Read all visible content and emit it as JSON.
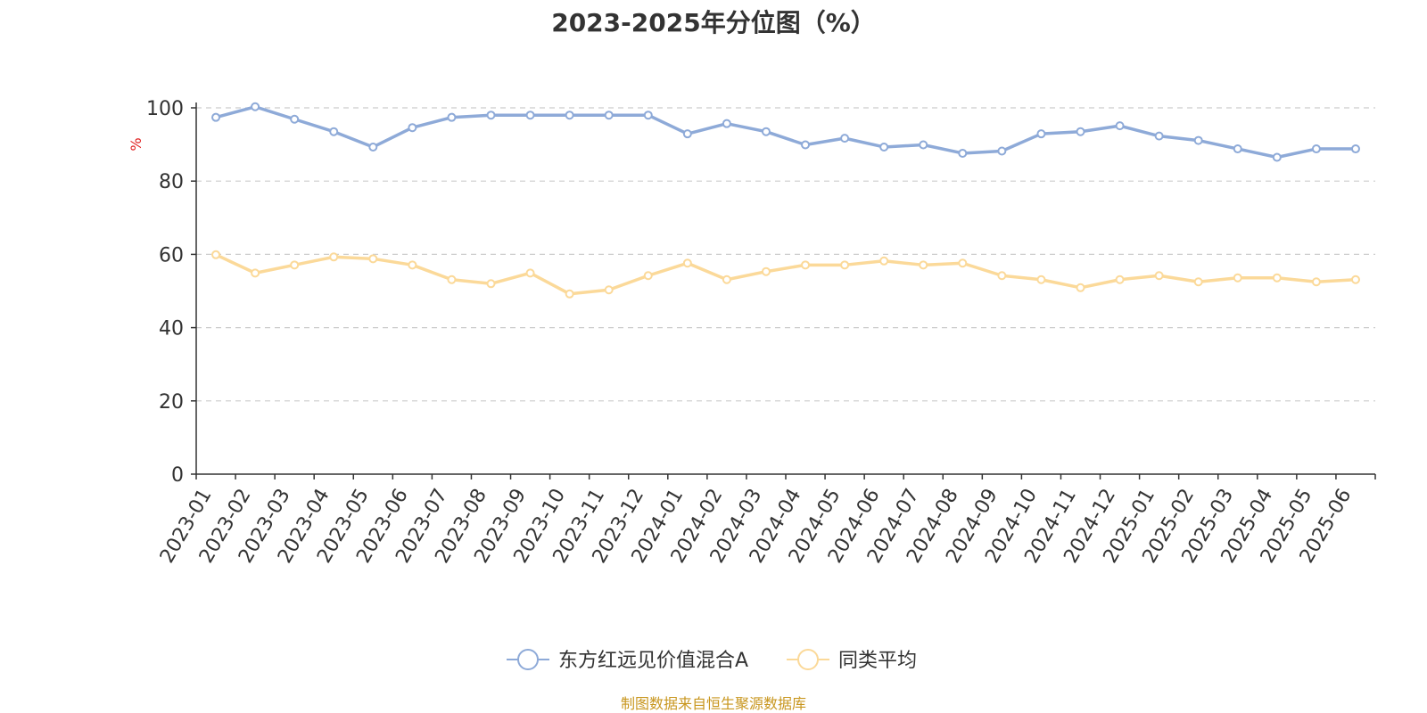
{
  "chart_data": {
    "type": "line",
    "title": "2023-2025年分位图（%）",
    "ylabel": "%",
    "ylim": [
      0,
      100
    ],
    "yticks": [
      0,
      20,
      40,
      60,
      80,
      100
    ],
    "grid": true,
    "legend_position": "bottom-center",
    "categories": [
      "2023-01",
      "2023-02",
      "2023-03",
      "2023-04",
      "2023-05",
      "2023-06",
      "2023-07",
      "2023-08",
      "2023-09",
      "2023-10",
      "2023-11",
      "2023-12",
      "2024-01",
      "2024-02",
      "2024-03",
      "2024-04",
      "2024-05",
      "2024-06",
      "2024-07",
      "2024-08",
      "2024-09",
      "2024-10",
      "2024-11",
      "2024-12",
      "2025-01",
      "2025-02",
      "2025-03",
      "2025-04",
      "2025-05",
      "2025-06"
    ],
    "series": [
      {
        "name": "东方红远见价值混合A",
        "color": "#8eaad8",
        "values": [
          97.4,
          100.3,
          96.9,
          93.5,
          89.3,
          94.6,
          97.4,
          98.0,
          98.0,
          98.0,
          98.0,
          98.0,
          92.9,
          95.7,
          93.5,
          89.9,
          91.7,
          89.3,
          89.9,
          87.6,
          88.2,
          92.9,
          93.5,
          95.1,
          92.3,
          91.1,
          88.8,
          86.5,
          88.8,
          88.8
        ]
      },
      {
        "name": "同类平均",
        "color": "#fbd999",
        "values": [
          59.9,
          54.9,
          57.1,
          59.3,
          58.8,
          57.1,
          53.1,
          52.0,
          54.9,
          49.2,
          50.3,
          54.2,
          57.6,
          53.1,
          55.3,
          57.1,
          57.1,
          58.2,
          57.1,
          57.6,
          54.2,
          53.1,
          50.9,
          53.1,
          54.2,
          52.5,
          53.6,
          53.6,
          52.5,
          53.1
        ]
      }
    ]
  },
  "source_text": "制图数据来自恒生聚源数据库"
}
